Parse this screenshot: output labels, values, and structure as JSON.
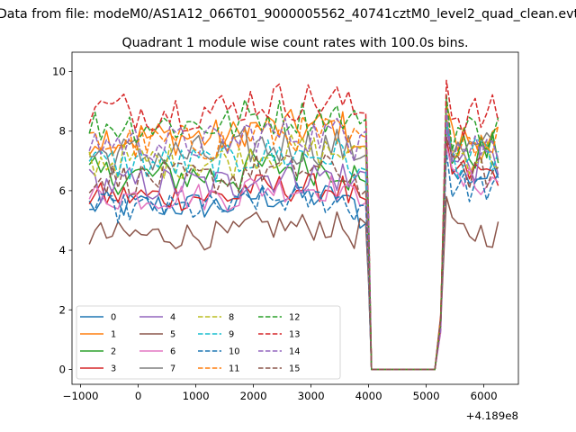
{
  "figure": {
    "suptitle": "Data from file: modeM0/AS1A12_066T01_9000005562_40741cztM0_level2_quad_clean.evt"
  },
  "chart_data": {
    "type": "line",
    "title": "Quadrant 1 module wise count rates with 100.0s bins.",
    "xlabel": "",
    "ylabel": "",
    "x_offset_label": "+4.189e8",
    "xlim": [
      -1150,
      6600
    ],
    "ylim": [
      -0.5,
      10.65
    ],
    "xticks": [
      -1000,
      0,
      1000,
      2000,
      3000,
      4000,
      5000,
      6000
    ],
    "xtick_labels": [
      "−1000",
      "0",
      "1000",
      "2000",
      "3000",
      "4000",
      "5000",
      "6000"
    ],
    "yticks": [
      0,
      2,
      4,
      6,
      8,
      10
    ],
    "ytick_labels": [
      "0",
      "2",
      "4",
      "6",
      "8",
      "10"
    ],
    "grid": false,
    "legend": {
      "placement": "lower-left",
      "ncol": 4
    },
    "segment_a": {
      "x_start": -850,
      "x_end": 3950,
      "step": 100
    },
    "segment_b": {
      "x_start": 5250,
      "x_end": 6250,
      "step": 100
    },
    "gap_points": [
      [
        4050,
        0
      ],
      [
        5150,
        0
      ]
    ],
    "series": [
      {
        "name": "0",
        "color": "#1f77b4",
        "dash": "solid",
        "mean": 5.5,
        "amp": 0.35,
        "end": 4.9,
        "b_mean": 6.5
      },
      {
        "name": "1",
        "color": "#ff7f0e",
        "dash": "solid",
        "mean": 7.8,
        "amp": 0.45,
        "end": 7.5,
        "b_mean": 7.7
      },
      {
        "name": "2",
        "color": "#2ca02c",
        "dash": "solid",
        "mean": 6.5,
        "amp": 0.45,
        "end": 6.3,
        "b_mean": 7.3
      },
      {
        "name": "3",
        "color": "#d62728",
        "dash": "solid",
        "mean": 5.8,
        "amp": 0.35,
        "end": 5.7,
        "b_mean": 6.6
      },
      {
        "name": "4",
        "color": "#9467bd",
        "dash": "solid",
        "mean": 6.2,
        "amp": 0.45,
        "end": 6.6,
        "b_mean": 6.9
      },
      {
        "name": "5",
        "color": "#8c564b",
        "dash": "solid",
        "mean": 4.5,
        "amp": 0.35,
        "end": 4.9,
        "b_mean": 4.6
      },
      {
        "name": "6",
        "color": "#e377c2",
        "dash": "solid",
        "mean": 5.8,
        "amp": 0.35,
        "end": 5.6,
        "b_mean": 6.3
      },
      {
        "name": "7",
        "color": "#7f7f7f",
        "dash": "solid",
        "mean": 7.2,
        "amp": 0.5,
        "end": 7.2,
        "b_mean": 7.3
      },
      {
        "name": "8",
        "color": "#bcbd22",
        "dash": "dashed",
        "mean": 7.0,
        "amp": 0.45,
        "end": 7.5,
        "b_mean": 7.2
      },
      {
        "name": "9",
        "color": "#17becf",
        "dash": "dashed",
        "mean": 6.9,
        "amp": 0.45,
        "end": 6.7,
        "b_mean": 7.1
      },
      {
        "name": "10",
        "color": "#1f77b4",
        "dash": "dashed",
        "mean": 5.4,
        "amp": 0.35,
        "end": 5.5,
        "b_mean": 6.1
      },
      {
        "name": "11",
        "color": "#ff7f0e",
        "dash": "dashed",
        "mean": 7.6,
        "amp": 0.45,
        "end": 7.8,
        "b_mean": 7.8
      },
      {
        "name": "12",
        "color": "#2ca02c",
        "dash": "dashed",
        "mean": 8.2,
        "amp": 0.45,
        "end": 8.4,
        "b_mean": 8.0
      },
      {
        "name": "13",
        "color": "#d62728",
        "dash": "dashed",
        "mean": 8.7,
        "amp": 0.5,
        "end": 8.6,
        "b_mean": 8.5
      },
      {
        "name": "14",
        "color": "#9467bd",
        "dash": "dashed",
        "mean": 7.6,
        "amp": 0.45,
        "end": 8.0,
        "b_mean": 7.5
      },
      {
        "name": "15",
        "color": "#8c564b",
        "dash": "dashed",
        "mean": 6.4,
        "amp": 0.4,
        "end": 6.0,
        "b_mean": 6.6
      }
    ]
  }
}
